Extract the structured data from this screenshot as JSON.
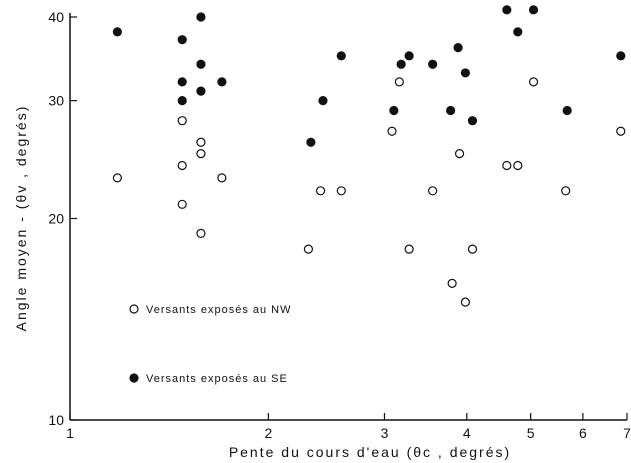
{
  "chart_data": {
    "type": "scatter",
    "xscale": "log",
    "yscale": "log",
    "xlim": [
      1,
      7
    ],
    "ylim": [
      10,
      40
    ],
    "xlabel": "Pente du cours d'eau (θc , degrés)",
    "ylabel": "Angle moyen - (θv , degrés)",
    "x_ticks": [
      1,
      2,
      3,
      4,
      5,
      6,
      7
    ],
    "y_ticks": [
      10,
      20,
      30,
      40
    ],
    "grid": false,
    "legend_position": "center-left",
    "series": [
      {
        "name": "Versants exposés au NW",
        "marker": "open-circle",
        "points": [
          [
            1.18,
            23
          ],
          [
            1.48,
            28
          ],
          [
            1.48,
            24
          ],
          [
            1.48,
            21
          ],
          [
            1.58,
            26
          ],
          [
            1.58,
            25
          ],
          [
            1.58,
            19
          ],
          [
            1.7,
            23
          ],
          [
            2.3,
            18
          ],
          [
            2.4,
            22
          ],
          [
            2.58,
            22
          ],
          [
            3.08,
            27
          ],
          [
            3.16,
            32
          ],
          [
            3.27,
            18
          ],
          [
            3.55,
            22
          ],
          [
            3.8,
            16
          ],
          [
            3.9,
            25
          ],
          [
            3.98,
            15
          ],
          [
            4.08,
            18
          ],
          [
            4.6,
            24
          ],
          [
            4.78,
            24
          ],
          [
            5.05,
            32
          ],
          [
            5.65,
            22
          ],
          [
            6.85,
            27
          ]
        ]
      },
      {
        "name": "Versants exposés au SE",
        "marker": "filled-circle",
        "points": [
          [
            1.18,
            38
          ],
          [
            1.48,
            37
          ],
          [
            1.48,
            32
          ],
          [
            1.48,
            30
          ],
          [
            1.58,
            40
          ],
          [
            1.58,
            34
          ],
          [
            1.58,
            31
          ],
          [
            1.7,
            32
          ],
          [
            2.32,
            26
          ],
          [
            2.42,
            30
          ],
          [
            2.58,
            35
          ],
          [
            3.1,
            29
          ],
          [
            3.18,
            34
          ],
          [
            3.27,
            35
          ],
          [
            3.55,
            34
          ],
          [
            3.78,
            29
          ],
          [
            3.88,
            36
          ],
          [
            3.98,
            33
          ],
          [
            4.08,
            28
          ],
          [
            4.6,
            41
          ],
          [
            4.78,
            38
          ],
          [
            5.05,
            41
          ],
          [
            5.68,
            29
          ],
          [
            6.85,
            35
          ]
        ]
      }
    ],
    "legend": [
      {
        "label": "Versants exposés au NW",
        "marker": "open-circle"
      },
      {
        "label": "Versants exposés au SE",
        "marker": "filled-circle"
      }
    ]
  }
}
